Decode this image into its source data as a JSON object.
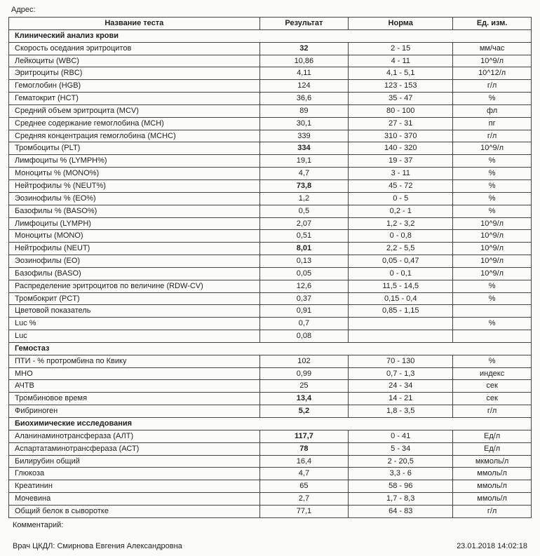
{
  "topLabel": "Адрес:",
  "headers": {
    "name": "Название теста",
    "result": "Результат",
    "norm": "Норма",
    "unit": "Ед. изм."
  },
  "sections": [
    {
      "title": "Клинический анализ крови",
      "rows": [
        {
          "name": "Скорость оседания эритроцитов",
          "result": "32",
          "bold": true,
          "norm": "2 - 15",
          "unit": "мм/час"
        },
        {
          "name": "Лейкоциты (WBC)",
          "result": "10,86",
          "norm": "4 - 11",
          "unit": "10^9/л"
        },
        {
          "name": "Эритроциты (RBC)",
          "result": "4,11",
          "norm": "4,1 - 5,1",
          "unit": "10^12/л"
        },
        {
          "name": "Гемоглобин (HGB)",
          "result": "124",
          "norm": "123 - 153",
          "unit": "г/л"
        },
        {
          "name": "Гематокрит (HCT)",
          "result": "36,6",
          "norm": "35 - 47",
          "unit": "%"
        },
        {
          "name": "Средний объем эритроцита (MCV)",
          "result": "89",
          "norm": "80 - 100",
          "unit": "фл"
        },
        {
          "name": "Среднее содержание гемоглобина (MCH)",
          "result": "30,1",
          "norm": "27 - 31",
          "unit": "пг"
        },
        {
          "name": "Средняя концентрация гемоглобина (MCHC)",
          "result": "339",
          "norm": "310 - 370",
          "unit": "г/л"
        },
        {
          "name": "Тромбоциты (PLT)",
          "result": "334",
          "bold": true,
          "norm": "140 - 320",
          "unit": "10^9/л"
        },
        {
          "name": "Лимфоциты % (LYMPH%)",
          "result": "19,1",
          "norm": "19 - 37",
          "unit": "%"
        },
        {
          "name": "Моноциты % (MONO%)",
          "result": "4,7",
          "norm": "3 - 11",
          "unit": "%"
        },
        {
          "name": "Нейтрофилы % (NEUT%)",
          "result": "73,8",
          "bold": true,
          "norm": "45 - 72",
          "unit": "%"
        },
        {
          "name": "Эозинофилы % (EO%)",
          "result": "1,2",
          "norm": "0 - 5",
          "unit": "%"
        },
        {
          "name": "Базофилы % (BASO%)",
          "result": "0,5",
          "norm": "0,2 - 1",
          "unit": "%"
        },
        {
          "name": "Лимфоциты (LYMPH)",
          "result": "2,07",
          "norm": "1,2 - 3,2",
          "unit": "10^9/л"
        },
        {
          "name": "Моноциты (MONO)",
          "result": "0,51",
          "norm": "0 - 0,8",
          "unit": "10^9/л"
        },
        {
          "name": "Нейтрофилы (NEUT)",
          "result": "8,01",
          "bold": true,
          "norm": "2,2 - 5,5",
          "unit": "10^9/л"
        },
        {
          "name": "Эозинофилы (EO)",
          "result": "0,13",
          "norm": "0,05 - 0,47",
          "unit": "10^9/л"
        },
        {
          "name": "Базофилы (BASO)",
          "result": "0,05",
          "norm": "0 - 0,1",
          "unit": "10^9/л"
        },
        {
          "name": "Распределение эритроцитов по величине (RDW-CV)",
          "result": "12,6",
          "norm": "11,5 - 14,5",
          "unit": "%"
        },
        {
          "name": "Тромбокрит (PCT)",
          "result": "0,37",
          "norm": "0,15 - 0,4",
          "unit": "%"
        },
        {
          "name": "Цветовой показатель",
          "result": "0,91",
          "norm": "0,85 - 1,15",
          "unit": ""
        },
        {
          "name": "Luc %",
          "result": "0,7",
          "norm": "",
          "unit": "%"
        },
        {
          "name": "Luc",
          "result": "0,08",
          "norm": "",
          "unit": ""
        }
      ]
    },
    {
      "title": "Гемостаз",
      "rows": [
        {
          "name": "ПТИ - % протромбина по Квику",
          "result": "102",
          "norm": "70 - 130",
          "unit": "%"
        },
        {
          "name": "МНО",
          "result": "0,99",
          "norm": "0,7 - 1,3",
          "unit": "индекс"
        },
        {
          "name": "АЧТВ",
          "result": "25",
          "norm": "24 - 34",
          "unit": "сек"
        },
        {
          "name": "Тромбиновое время",
          "result": "13,4",
          "bold": true,
          "norm": "14 - 21",
          "unit": "сек"
        },
        {
          "name": "Фибриноген",
          "result": "5,2",
          "bold": true,
          "norm": "1,8 - 3,5",
          "unit": "г/л"
        }
      ]
    },
    {
      "title": "Биохимические исследования",
      "rows": [
        {
          "name": "Аланинаминотрансфераза (АЛТ)",
          "result": "117,7",
          "bold": true,
          "norm": "0 - 41",
          "unit": "Ед/л"
        },
        {
          "name": "Аспартатаминотрансфераза (АСТ)",
          "result": "78",
          "bold": true,
          "norm": "5 - 34",
          "unit": "Ед/л"
        },
        {
          "name": "Билирубин общий",
          "result": "16,4",
          "norm": "2 - 20,5",
          "unit": "мкмоль/л"
        },
        {
          "name": "Глюкоза",
          "result": "4,7",
          "norm": "3,3 - 6",
          "unit": "ммоль/л"
        },
        {
          "name": "Креатинин",
          "result": "65",
          "norm": "58 - 96",
          "unit": "ммоль/л"
        },
        {
          "name": "Мочевина",
          "result": "2,7",
          "norm": "1,7 - 8,3",
          "unit": "ммоль/л"
        },
        {
          "name": "Общий белок в сыворотке",
          "result": "77,1",
          "norm": "64 - 83",
          "unit": "г/л"
        }
      ]
    }
  ],
  "commentLabel": "Комментарий:",
  "doctorLabel": "Врач ЦКДЛ: Смирнова Евгения Александровна",
  "timestamp": "23.01.2018 14:02:18"
}
